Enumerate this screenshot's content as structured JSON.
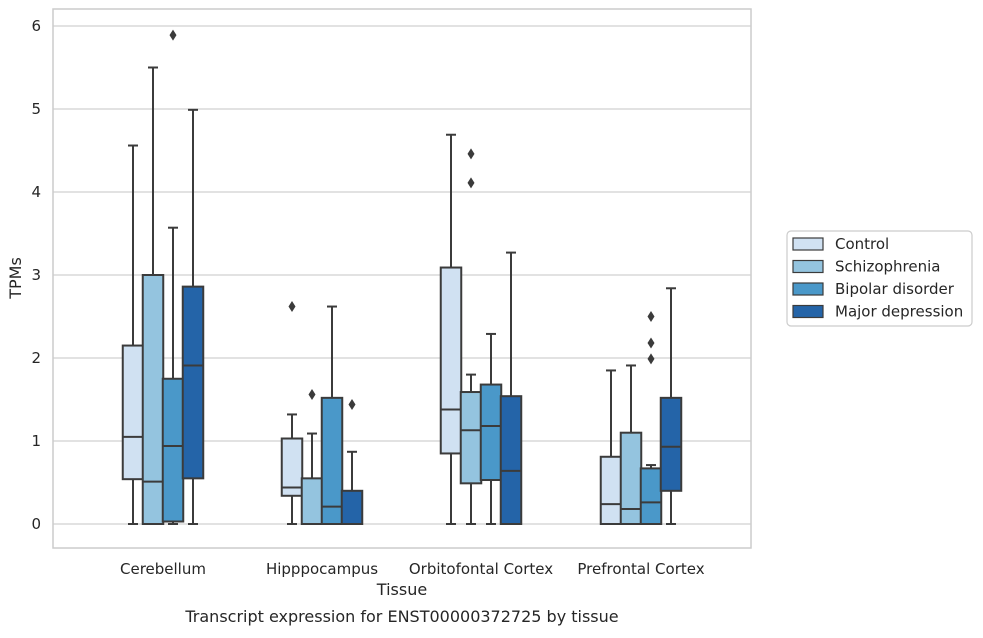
{
  "chart_data": {
    "type": "box",
    "caption": "Transcript expression for ENST00000372725 by tissue",
    "xlabel": "Tissue",
    "ylabel": "TPMs",
    "ylim": [
      -0.28,
      6.2
    ],
    "yticks": [
      0,
      1,
      2,
      3,
      4,
      5,
      6
    ],
    "grid": true,
    "legend_position": "right",
    "categories": [
      "Cerebellum",
      "Hipppocampus",
      "Orbitofontal Cortex",
      "Prefrontal Cortex"
    ],
    "series": [
      {
        "name": "Control",
        "color": "#d0e1f2",
        "boxes": [
          {
            "whislo": 0,
            "q1": 0.54,
            "med": 1.05,
            "q3": 2.15,
            "whishi": 4.56,
            "fliers": []
          },
          {
            "whislo": 0,
            "q1": 0.34,
            "med": 0.44,
            "q3": 1.03,
            "whishi": 1.32,
            "fliers": [
              2.62
            ]
          },
          {
            "whislo": 0,
            "q1": 0.85,
            "med": 1.38,
            "q3": 3.09,
            "whishi": 4.69,
            "fliers": []
          },
          {
            "whislo": 0,
            "q1": 0,
            "med": 0.24,
            "q3": 0.81,
            "whishi": 1.85,
            "fliers": []
          }
        ]
      },
      {
        "name": "Schizophrenia",
        "color": "#94c4df",
        "boxes": [
          {
            "whislo": 0,
            "q1": 0,
            "med": 0.51,
            "q3": 3.0,
            "whishi": 5.5,
            "fliers": []
          },
          {
            "whislo": 0,
            "q1": 0,
            "med": 0,
            "q3": 0.55,
            "whishi": 1.09,
            "fliers": [
              1.56
            ]
          },
          {
            "whislo": 0,
            "q1": 0.49,
            "med": 1.13,
            "q3": 1.59,
            "whishi": 1.8,
            "fliers": [
              4.11,
              4.46
            ]
          },
          {
            "whislo": 0,
            "q1": 0,
            "med": 0.18,
            "q3": 1.1,
            "whishi": 1.91,
            "fliers": []
          }
        ]
      },
      {
        "name": "Bipolar disorder",
        "color": "#4a98c9",
        "boxes": [
          {
            "whislo": 0,
            "q1": 0.03,
            "med": 0.94,
            "q3": 1.75,
            "whishi": 3.57,
            "fliers": [
              5.89
            ]
          },
          {
            "whislo": 0,
            "q1": 0,
            "med": 0.21,
            "q3": 1.52,
            "whishi": 2.62,
            "fliers": []
          },
          {
            "whislo": 0,
            "q1": 0.53,
            "med": 1.18,
            "q3": 1.68,
            "whishi": 2.29,
            "fliers": []
          },
          {
            "whislo": 0,
            "q1": 0,
            "med": 0.26,
            "q3": 0.67,
            "whishi": 0.71,
            "fliers": [
              1.99,
              2.18,
              2.5
            ]
          }
        ]
      },
      {
        "name": "Major depression",
        "color": "#2464a8",
        "boxes": [
          {
            "whislo": 0,
            "q1": 0.55,
            "med": 1.91,
            "q3": 2.86,
            "whishi": 4.99,
            "fliers": []
          },
          {
            "whislo": 0,
            "q1": 0,
            "med": 0,
            "q3": 0.4,
            "whishi": 0.87,
            "fliers": [
              1.44
            ]
          },
          {
            "whislo": 0,
            "q1": 0,
            "med": 0.64,
            "q3": 1.54,
            "whishi": 3.27,
            "fliers": []
          },
          {
            "whislo": 0,
            "q1": 0.4,
            "med": 0.93,
            "q3": 1.52,
            "whishi": 2.84,
            "fliers": []
          }
        ]
      }
    ]
  }
}
